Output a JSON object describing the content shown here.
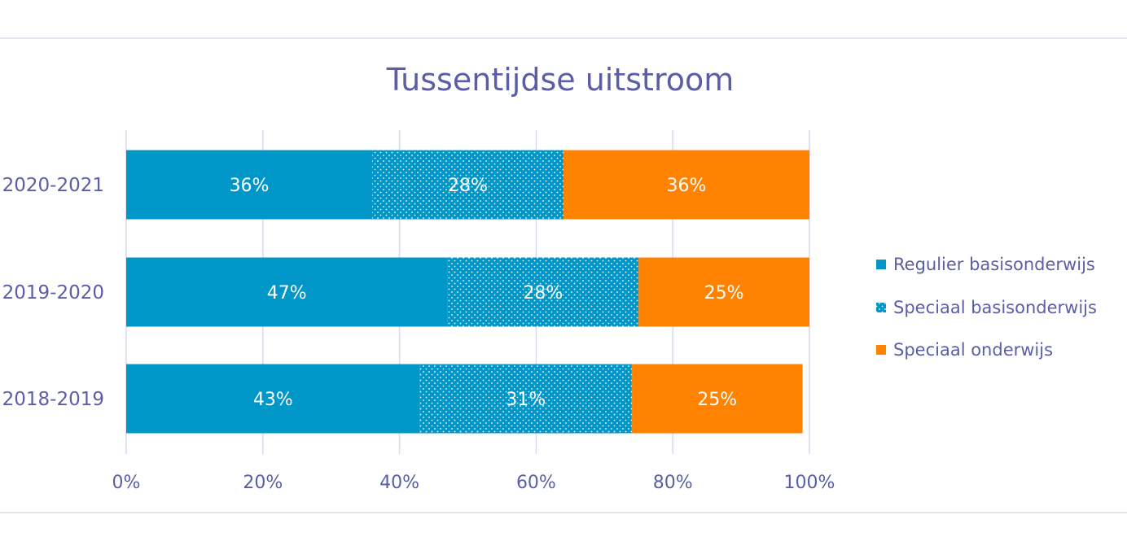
{
  "chart_data": {
    "type": "bar",
    "orientation": "horizontal",
    "stacked": "percent",
    "title": "Tussentijdse uitstroom",
    "categories": [
      "2020-2021",
      "2019-2020",
      "2018-2019"
    ],
    "series": [
      {
        "name": "Regulier basisonderwijs",
        "values": [
          36,
          47,
          43
        ],
        "labels": [
          "36%",
          "47%",
          "43%"
        ],
        "color": "#0096c8",
        "pattern": "solid"
      },
      {
        "name": "Speciaal basisonderwijs",
        "values": [
          28,
          28,
          31
        ],
        "labels": [
          "28%",
          "28%",
          "31%"
        ],
        "color": "#0096c8",
        "pattern": "dotted"
      },
      {
        "name": "Speciaal onderwijs",
        "values": [
          36,
          25,
          25
        ],
        "labels": [
          "36%",
          "25%",
          "25%"
        ],
        "color": "#ff8200",
        "pattern": "solid"
      }
    ],
    "xlim": [
      0,
      100
    ],
    "xticks": [
      "0%",
      "20%",
      "40%",
      "60%",
      "80%",
      "100%"
    ],
    "grid": true,
    "legend": "right",
    "text_color": "#5b5ea6",
    "grid_color": "#d9d9ef"
  }
}
